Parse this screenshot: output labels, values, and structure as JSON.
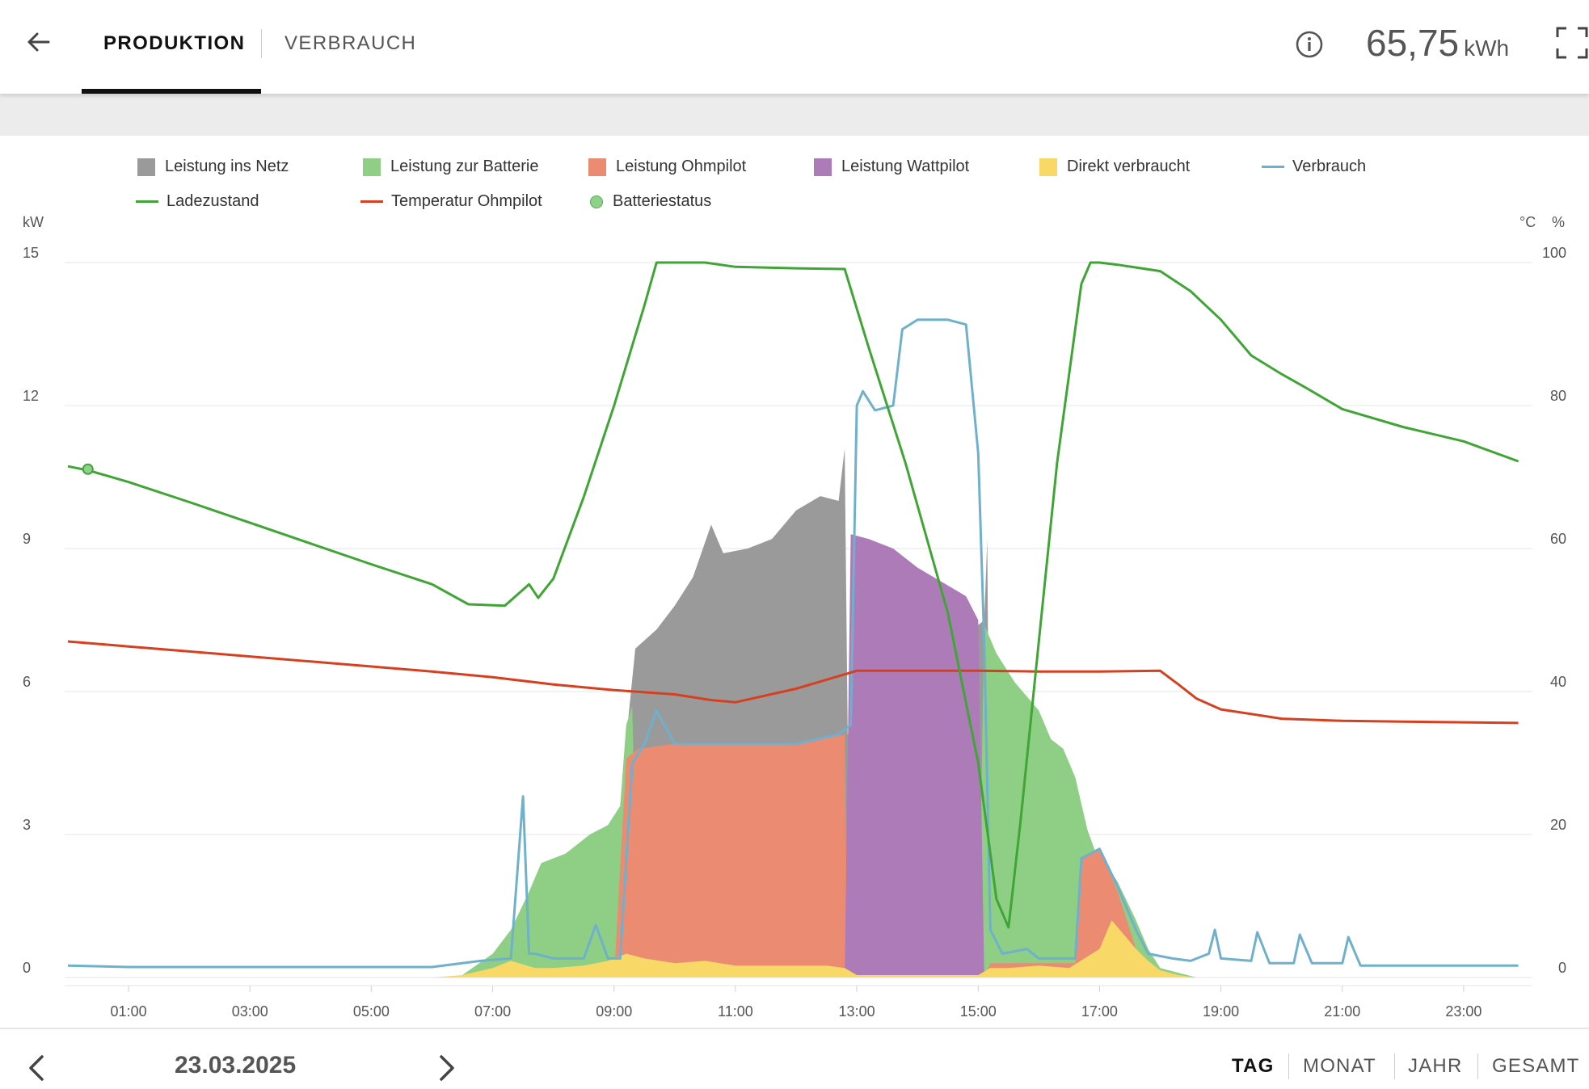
{
  "header": {
    "tabs": [
      {
        "label": "PRODUKTION"
      },
      {
        "label": "VERBRAUCH"
      }
    ],
    "total_value": "65,75",
    "total_unit": "kWh"
  },
  "legend": [
    {
      "label": "Leistung ins Netz",
      "color": "#9a9a9a",
      "kind": "area"
    },
    {
      "label": "Leistung zur Batterie",
      "color": "#8fcf85",
      "kind": "area"
    },
    {
      "label": "Leistung Ohmpilot",
      "color": "#eb8c72",
      "kind": "area"
    },
    {
      "label": "Leistung Wattpilot",
      "color": "#ad7bb8",
      "kind": "area"
    },
    {
      "label": "Direkt verbraucht",
      "color": "#f8d866",
      "kind": "area"
    },
    {
      "label": "Verbrauch",
      "color": "#6fb1cc",
      "kind": "line"
    },
    {
      "label": "Ladezustand",
      "color": "#3fa535",
      "kind": "line"
    },
    {
      "label": "Temperatur Ohmpilot",
      "color": "#d7401f",
      "kind": "line"
    },
    {
      "label": "Batteriestatus",
      "color": "#8fd18a",
      "kind": "marker"
    }
  ],
  "chart_data": {
    "type": "area",
    "left_axis_unit": "kW",
    "right_axis_units": [
      "°C",
      "%"
    ],
    "left_ticks": [
      "0",
      "3",
      "6",
      "9",
      "12",
      "15"
    ],
    "right_ticks": [
      "0",
      "20",
      "40",
      "60",
      "80",
      "100"
    ],
    "x_ticks": [
      "01:00",
      "03:00",
      "05:00",
      "07:00",
      "09:00",
      "11:00",
      "13:00",
      "15:00",
      "17:00",
      "19:00",
      "21:00",
      "23:00"
    ],
    "ylim_left": [
      0,
      15
    ],
    "ylim_right": [
      0,
      100
    ],
    "xlim_hours": [
      0,
      24
    ],
    "grid": true,
    "legend_position": "top",
    "series": [
      {
        "name": "Direkt verbraucht",
        "color": "#f8d866",
        "points": [
          [
            6.0,
            0
          ],
          [
            6.5,
            0.05
          ],
          [
            7.0,
            0.2
          ],
          [
            7.3,
            0.35
          ],
          [
            7.7,
            0.2
          ],
          [
            8.0,
            0.2
          ],
          [
            8.5,
            0.25
          ],
          [
            8.9,
            0.35
          ],
          [
            9.2,
            0.5
          ],
          [
            9.5,
            0.4
          ],
          [
            10,
            0.3
          ],
          [
            10.5,
            0.35
          ],
          [
            11,
            0.25
          ],
          [
            11.5,
            0.25
          ],
          [
            12,
            0.25
          ],
          [
            12.5,
            0.25
          ],
          [
            12.8,
            0.2
          ],
          [
            13,
            0.05
          ],
          [
            14,
            0.05
          ],
          [
            15,
            0.05
          ],
          [
            15.2,
            0.2
          ],
          [
            15.5,
            0.2
          ],
          [
            16,
            0.25
          ],
          [
            16.5,
            0.2
          ],
          [
            17.0,
            0.6
          ],
          [
            17.2,
            1.2
          ],
          [
            17.4,
            0.9
          ],
          [
            17.6,
            0.6
          ],
          [
            17.8,
            0.35
          ],
          [
            18.0,
            0.15
          ],
          [
            18.3,
            0.05
          ],
          [
            18.6,
            0
          ]
        ]
      },
      {
        "name": "Leistung Ohmpilot",
        "color": "#eb8c72",
        "points": [
          [
            6.0,
            0
          ],
          [
            9.0,
            0
          ],
          [
            9.2,
            4.6
          ],
          [
            9.4,
            4.8
          ],
          [
            10,
            4.9
          ],
          [
            11,
            4.9
          ],
          [
            12,
            4.9
          ],
          [
            12.8,
            5.1
          ],
          [
            12.85,
            0
          ],
          [
            15.1,
            0
          ],
          [
            15.2,
            0.3
          ],
          [
            16,
            0.3
          ],
          [
            16.6,
            0.3
          ],
          [
            16.7,
            2.5
          ],
          [
            17.0,
            2.7
          ],
          [
            17.3,
            1.8
          ],
          [
            17.6,
            0.6
          ],
          [
            17.8,
            0.2
          ],
          [
            18.0,
            0.05
          ],
          [
            18.6,
            0
          ]
        ]
      },
      {
        "name": "Leistung Wattpilot",
        "color": "#ad7bb8",
        "points": [
          [
            12.8,
            0
          ],
          [
            12.9,
            9.3
          ],
          [
            13.2,
            9.2
          ],
          [
            13.6,
            9.0
          ],
          [
            14.0,
            8.6
          ],
          [
            14.4,
            8.3
          ],
          [
            14.8,
            8.0
          ],
          [
            15.0,
            7.5
          ],
          [
            15.1,
            0
          ]
        ]
      },
      {
        "name": "Leistung zur Batterie",
        "color": "#8fcf85",
        "points": [
          [
            6.5,
            0.05
          ],
          [
            7.0,
            0.5
          ],
          [
            7.3,
            1.0
          ],
          [
            7.6,
            1.8
          ],
          [
            7.8,
            2.4
          ],
          [
            8.2,
            2.6
          ],
          [
            8.6,
            3.0
          ],
          [
            8.9,
            3.2
          ],
          [
            9.1,
            3.6
          ],
          [
            9.2,
            5.3
          ],
          [
            9.3,
            5.7
          ],
          [
            9.4,
            0
          ],
          [
            15.0,
            0
          ],
          [
            15.1,
            7.4
          ],
          [
            15.3,
            6.8
          ],
          [
            15.6,
            6.2
          ],
          [
            15.8,
            5.9
          ],
          [
            16.0,
            5.6
          ],
          [
            16.2,
            5.0
          ],
          [
            16.4,
            4.8
          ],
          [
            16.6,
            4.2
          ],
          [
            16.8,
            3.1
          ],
          [
            17.0,
            2.4
          ],
          [
            17.3,
            2.0
          ],
          [
            17.6,
            1.2
          ],
          [
            17.8,
            0.6
          ],
          [
            18.0,
            0.2
          ],
          [
            18.6,
            0
          ]
        ]
      },
      {
        "name": "Leistung ins Netz",
        "color": "#9a9a9a",
        "points": [
          [
            9.2,
            5.0
          ],
          [
            9.35,
            6.9
          ],
          [
            9.7,
            7.3
          ],
          [
            10.0,
            7.8
          ],
          [
            10.3,
            8.4
          ],
          [
            10.6,
            9.5
          ],
          [
            10.8,
            8.9
          ],
          [
            11.2,
            9.0
          ],
          [
            11.6,
            9.2
          ],
          [
            12.0,
            9.8
          ],
          [
            12.4,
            10.1
          ],
          [
            12.7,
            10.0
          ],
          [
            12.8,
            11.1
          ],
          [
            12.85,
            5.1
          ],
          [
            15.1,
            7.5
          ],
          [
            15.15,
            9.2
          ],
          [
            15.2,
            0.3
          ],
          [
            16.0,
            0.3
          ],
          [
            17.0,
            2.6
          ],
          [
            17.3,
            2.0
          ],
          [
            17.6,
            1.2
          ],
          [
            17.8,
            0.2
          ],
          [
            18.0,
            0
          ]
        ]
      },
      {
        "name": "Verbrauch",
        "color": "#6fb1cc",
        "points": [
          [
            0,
            0.25
          ],
          [
            1,
            0.22
          ],
          [
            2,
            0.22
          ],
          [
            3,
            0.22
          ],
          [
            4,
            0.22
          ],
          [
            5,
            0.22
          ],
          [
            6,
            0.22
          ],
          [
            6.8,
            0.35
          ],
          [
            7.3,
            0.4
          ],
          [
            7.5,
            3.8
          ],
          [
            7.6,
            0.5
          ],
          [
            7.7,
            0.5
          ],
          [
            8.0,
            0.4
          ],
          [
            8.5,
            0.4
          ],
          [
            8.7,
            1.1
          ],
          [
            8.9,
            0.4
          ],
          [
            9.1,
            0.4
          ],
          [
            9.3,
            4.5
          ],
          [
            9.5,
            4.9
          ],
          [
            9.7,
            5.6
          ],
          [
            10,
            4.9
          ],
          [
            11,
            4.9
          ],
          [
            12,
            4.9
          ],
          [
            12.7,
            5.1
          ],
          [
            12.9,
            5.3
          ],
          [
            13.0,
            12.0
          ],
          [
            13.1,
            12.3
          ],
          [
            13.3,
            11.9
          ],
          [
            13.6,
            12.0
          ],
          [
            13.75,
            13.6
          ],
          [
            14.0,
            13.8
          ],
          [
            14.5,
            13.8
          ],
          [
            14.8,
            13.7
          ],
          [
            15.0,
            11.0
          ],
          [
            15.1,
            7.0
          ],
          [
            15.2,
            1.0
          ],
          [
            15.4,
            0.5
          ],
          [
            15.8,
            0.6
          ],
          [
            16.0,
            0.4
          ],
          [
            16.6,
            0.4
          ],
          [
            16.7,
            2.5
          ],
          [
            17.0,
            2.7
          ],
          [
            17.3,
            1.9
          ],
          [
            17.6,
            1.0
          ],
          [
            17.8,
            0.5
          ],
          [
            18.2,
            0.4
          ],
          [
            18.5,
            0.35
          ],
          [
            18.8,
            0.5
          ],
          [
            18.9,
            1.0
          ],
          [
            19.0,
            0.4
          ],
          [
            19.5,
            0.35
          ],
          [
            19.6,
            0.95
          ],
          [
            19.8,
            0.3
          ],
          [
            20.2,
            0.3
          ],
          [
            20.3,
            0.9
          ],
          [
            20.5,
            0.3
          ],
          [
            21.0,
            0.3
          ],
          [
            21.1,
            0.85
          ],
          [
            21.3,
            0.25
          ],
          [
            22,
            0.25
          ],
          [
            23,
            0.25
          ],
          [
            23.9,
            0.25
          ]
        ]
      },
      {
        "name": "Ladezustand",
        "color": "#3fa535",
        "axis": "right",
        "points": [
          [
            0,
            71.5
          ],
          [
            0.35,
            70.9
          ],
          [
            1.0,
            69.3
          ],
          [
            2.0,
            66.5
          ],
          [
            3.0,
            63.6
          ],
          [
            4.0,
            60.7
          ],
          [
            5.0,
            57.8
          ],
          [
            6.0,
            55.0
          ],
          [
            6.6,
            52.2
          ],
          [
            7.2,
            52.0
          ],
          [
            7.6,
            55.0
          ],
          [
            7.75,
            53.1
          ],
          [
            8.0,
            55.8
          ],
          [
            8.5,
            67.2
          ],
          [
            9.0,
            80.0
          ],
          [
            9.5,
            94.0
          ],
          [
            9.7,
            100
          ],
          [
            10.0,
            100
          ],
          [
            10.5,
            100
          ],
          [
            11.0,
            99.4
          ],
          [
            12.0,
            99.2
          ],
          [
            12.8,
            99.1
          ],
          [
            13.2,
            88.0
          ],
          [
            13.8,
            72.0
          ],
          [
            14.5,
            51.0
          ],
          [
            15.0,
            30.0
          ],
          [
            15.3,
            11.0
          ],
          [
            15.5,
            7.0
          ],
          [
            15.7,
            22.0
          ],
          [
            16.0,
            47.0
          ],
          [
            16.3,
            72.0
          ],
          [
            16.7,
            97.0
          ],
          [
            16.85,
            100
          ],
          [
            17.0,
            100
          ],
          [
            17.3,
            99.7
          ],
          [
            18.0,
            98.8
          ],
          [
            18.5,
            96.0
          ],
          [
            19.0,
            92.0
          ],
          [
            19.5,
            87.0
          ],
          [
            20.0,
            84.4
          ],
          [
            20.4,
            82.5
          ],
          [
            21.0,
            79.5
          ],
          [
            22.0,
            77.0
          ],
          [
            23.0,
            75.0
          ],
          [
            23.9,
            72.2
          ]
        ]
      },
      {
        "name": "Temperatur Ohmpilot",
        "color": "#d7401f",
        "axis": "right",
        "points": [
          [
            0,
            47.0
          ],
          [
            1,
            46.3
          ],
          [
            2,
            45.6
          ],
          [
            3,
            44.9
          ],
          [
            4,
            44.2
          ],
          [
            5,
            43.5
          ],
          [
            6,
            42.8
          ],
          [
            7,
            42.0
          ],
          [
            8,
            41.0
          ],
          [
            9,
            40.2
          ],
          [
            10,
            39.6
          ],
          [
            10.6,
            38.8
          ],
          [
            11.0,
            38.5
          ],
          [
            12.0,
            40.4
          ],
          [
            13.0,
            42.9
          ],
          [
            14.0,
            42.9
          ],
          [
            15.0,
            42.9
          ],
          [
            16.0,
            42.8
          ],
          [
            17.0,
            42.8
          ],
          [
            18.0,
            42.9
          ],
          [
            18.3,
            41.0
          ],
          [
            18.6,
            39.0
          ],
          [
            19.0,
            37.5
          ],
          [
            20.0,
            36.2
          ],
          [
            21.0,
            35.9
          ],
          [
            22.0,
            35.8
          ],
          [
            23.0,
            35.7
          ],
          [
            23.9,
            35.6
          ]
        ]
      },
      {
        "name": "Batteriestatus",
        "color": "#8fd18a",
        "axis": "right",
        "kind": "marker",
        "points": [
          [
            0.33,
            71.1
          ]
        ]
      }
    ]
  },
  "footer": {
    "date": "23.03.2025",
    "periods": [
      {
        "label": "TAG"
      },
      {
        "label": "MONAT"
      },
      {
        "label": "JAHR"
      },
      {
        "label": "GESAMT"
      }
    ]
  }
}
